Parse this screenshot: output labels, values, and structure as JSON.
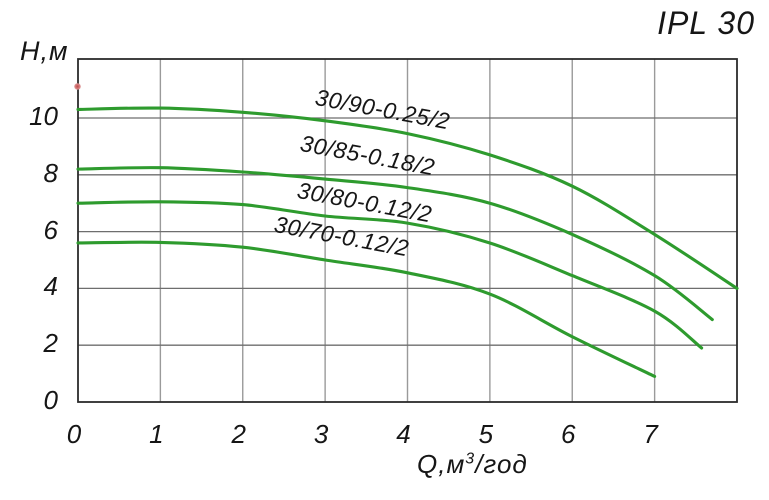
{
  "title": "IPL 30",
  "y_axis": {
    "label": "Н,м"
  },
  "x_axis": {
    "label_prefix": "Q,м",
    "label_sup": "3",
    "label_suffix": "/год"
  },
  "colors": {
    "curve": "#2e9b2e",
    "grid_vertical": "#9a9a9a",
    "grid_horizontal": "#6e6e6e",
    "frame": "#2b2b2b",
    "text": "#161616",
    "marker": "#c14a4a"
  },
  "chart_data": {
    "type": "line",
    "title": "IPL 30",
    "xlabel": "Q,м3/год",
    "ylabel": "Н,м",
    "xlim": [
      0,
      8
    ],
    "ylim": [
      0,
      12.1
    ],
    "x_ticks": [
      0,
      1,
      2,
      3,
      4,
      5,
      6,
      7
    ],
    "y_ticks": [
      0,
      2,
      4,
      6,
      8,
      10
    ],
    "grid": true,
    "legend_position": "inline-curve-labels",
    "series": [
      {
        "name": "30/90-0.25/2",
        "points": [
          [
            0,
            10.3
          ],
          [
            1,
            10.35
          ],
          [
            2,
            10.2
          ],
          [
            3,
            9.9
          ],
          [
            4,
            9.45
          ],
          [
            5,
            8.7
          ],
          [
            6,
            7.6
          ],
          [
            7,
            5.9
          ],
          [
            8,
            4.0
          ]
        ]
      },
      {
        "name": "30/85-0.18/2",
        "points": [
          [
            0,
            8.2
          ],
          [
            1,
            8.25
          ],
          [
            2,
            8.1
          ],
          [
            3,
            7.85
          ],
          [
            4,
            7.55
          ],
          [
            5,
            7.0
          ],
          [
            6,
            5.9
          ],
          [
            7,
            4.45
          ],
          [
            7.7,
            2.9
          ]
        ]
      },
      {
        "name": "30/80-0.12/2",
        "points": [
          [
            0,
            7.0
          ],
          [
            1,
            7.05
          ],
          [
            2,
            6.95
          ],
          [
            3,
            6.55
          ],
          [
            4,
            6.3
          ],
          [
            5,
            5.6
          ],
          [
            6,
            4.45
          ],
          [
            7,
            3.2
          ],
          [
            7.57,
            1.9
          ]
        ]
      },
      {
        "name": "30/70-0.12/2",
        "points": [
          [
            0,
            5.6
          ],
          [
            1,
            5.62
          ],
          [
            2,
            5.45
          ],
          [
            3,
            5.0
          ],
          [
            4,
            4.55
          ],
          [
            5,
            3.8
          ],
          [
            6,
            2.3
          ],
          [
            7,
            0.9
          ]
        ]
      }
    ]
  }
}
